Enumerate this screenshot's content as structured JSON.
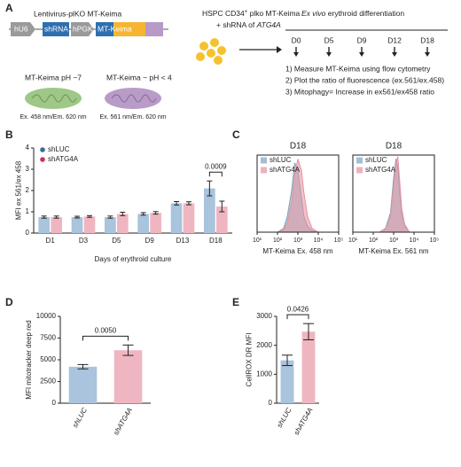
{
  "panels": {
    "labels": [
      "A",
      "B",
      "C",
      "D",
      "E"
    ]
  },
  "diagram": {
    "vector_title": "Lentivirus-plKO MT-Keima",
    "elements": [
      "hU6",
      "shRNA",
      "hPGK",
      "MT-Keima"
    ],
    "cells_title": "HSPC CD34",
    "cells_sup": "+",
    "cells_rest": " plko MT-Keima",
    "cells_line2": "+ shRNA of ",
    "cells_gene": "ATG4A",
    "timeline_italic": "Ex vivo",
    "timeline_rest": " erythroid differentiation",
    "days": [
      "D0",
      "D5",
      "D9",
      "D12",
      "D18"
    ],
    "steps": [
      "1) Measure MT-Keima using flow cytometry",
      "2) Plot the ratio of fluorescence (ex.561/ex.458)",
      "3) Mitophagy= Increase in ex561/ex458 ratio"
    ],
    "states": [
      {
        "label": "MT-Keima pH ~7",
        "excitation": "Ex. 458 nm/Em. 620 nm"
      },
      {
        "label": "MT-Keima ~ pH < 4",
        "excitation": "Ex. 561 nm/Em. 620 nm"
      }
    ]
  },
  "chart_data": [
    {
      "type": "bar",
      "ylabel": "MFI ex 561/ex 458",
      "xlabel": "Days of erythroid culture",
      "categories": [
        "D1",
        "D3",
        "D5",
        "D9",
        "D13",
        "D18"
      ],
      "series": [
        {
          "name": "shLUC",
          "color": "#a9c4dc",
          "dot": "#3a6a96",
          "values": [
            0.75,
            0.75,
            0.75,
            0.9,
            1.4,
            2.1
          ],
          "errors": [
            0.05,
            0.04,
            0.05,
            0.06,
            0.08,
            0.35
          ]
        },
        {
          "name": "shATG4A",
          "color": "#efb6c1",
          "dot": "#d0304e",
          "values": [
            0.75,
            0.78,
            0.9,
            0.95,
            1.4,
            1.25
          ],
          "errors": [
            0.05,
            0.04,
            0.08,
            0.06,
            0.07,
            0.25
          ]
        }
      ],
      "ylim": [
        0,
        4
      ],
      "yticks": [
        0,
        1,
        2,
        3,
        4
      ],
      "legend": "upper left",
      "annotation": "0.0009"
    },
    {
      "type": "area",
      "title": "D18",
      "xlabel": "MT-Keima Ex. 458 nm",
      "xscale": "log",
      "xlim": [
        10,
        100000
      ],
      "xticks": [
        {
          "value": 10,
          "label": "10¹"
        },
        {
          "value": 100,
          "label": "10²"
        },
        {
          "value": 1000,
          "label": "10³"
        },
        {
          "value": 10000,
          "label": "10⁴"
        },
        {
          "value": 100000,
          "label": "10⁵"
        }
      ],
      "ylim": [
        0,
        100
      ],
      "legend": "upper left",
      "series": [
        {
          "name": "shLUC",
          "color": "#7fa3bf",
          "x": [
            100,
            200,
            300,
            500,
            700,
            1000,
            1500,
            2000,
            3000,
            5000,
            10000
          ],
          "values": [
            0,
            5,
            20,
            55,
            90,
            80,
            45,
            20,
            8,
            2,
            0
          ]
        },
        {
          "name": "shATG4A",
          "color": "#e8919f",
          "x": [
            100,
            200,
            300,
            500,
            700,
            1000,
            1500,
            2000,
            3000,
            5000,
            10000
          ],
          "values": [
            0,
            3,
            12,
            40,
            75,
            95,
            80,
            50,
            20,
            5,
            0
          ]
        }
      ]
    },
    {
      "type": "area",
      "title": "D18",
      "xlabel": "MT-Keima Ex. 561 nm",
      "xscale": "log",
      "xlim": [
        10,
        100000
      ],
      "xticks": [
        {
          "value": 10,
          "label": "10¹"
        },
        {
          "value": 100,
          "label": "10²"
        },
        {
          "value": 1000,
          "label": "10³"
        },
        {
          "value": 10000,
          "label": "10⁴"
        },
        {
          "value": 100000,
          "label": "10⁵"
        }
      ],
      "ylim": [
        0,
        100
      ],
      "legend": "upper left",
      "series": [
        {
          "name": "shLUC",
          "color": "#7fa3bf",
          "x": [
            200,
            400,
            700,
            1000,
            1300,
            1600,
            2000,
            2500,
            3500,
            6000
          ],
          "values": [
            0,
            5,
            25,
            70,
            95,
            85,
            50,
            25,
            8,
            0
          ]
        },
        {
          "name": "shATG4A",
          "color": "#e8919f",
          "x": [
            200,
            400,
            700,
            1000,
            1300,
            1600,
            2000,
            2500,
            3500,
            6000
          ],
          "values": [
            0,
            4,
            20,
            60,
            90,
            98,
            65,
            30,
            10,
            0
          ]
        }
      ]
    },
    {
      "type": "bar",
      "ylabel": "MFI mitotracker deep red",
      "categories": [
        "shLUC",
        "shATG4A"
      ],
      "colors": [
        "#a9c4dc",
        "#efb6c1"
      ],
      "dots": [
        "#3a6a96",
        "#d0304e"
      ],
      "values": [
        4200,
        6100
      ],
      "errors": [
        250,
        600
      ],
      "ylim": [
        0,
        10000
      ],
      "yticks": [
        0,
        2500,
        5000,
        7500,
        10000
      ],
      "annotation": "0.0050"
    },
    {
      "type": "bar",
      "ylabel": "CellROX DR MFI",
      "categories": [
        "shLUC",
        "shATG4A"
      ],
      "colors": [
        "#a9c4dc",
        "#efb6c1"
      ],
      "dots": [
        "#3a6a96",
        "#d0304e"
      ],
      "values": [
        1480,
        2470
      ],
      "errors": [
        180,
        280
      ],
      "ylim": [
        0,
        3000
      ],
      "yticks": [
        0,
        1000,
        2000,
        3000
      ],
      "annotation": "0.0426"
    }
  ]
}
